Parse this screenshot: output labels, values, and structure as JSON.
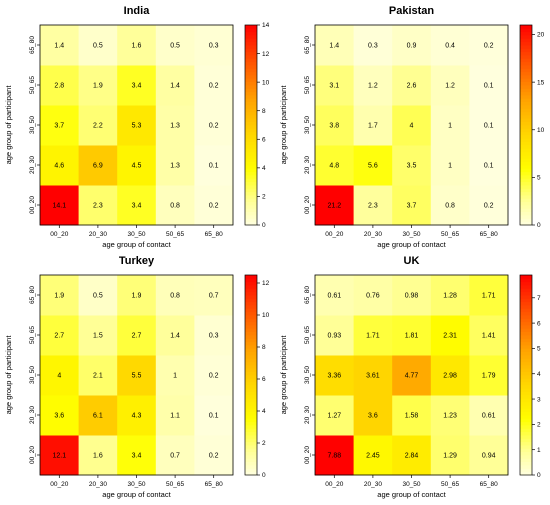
{
  "chart_data": [
    {
      "type": "heatmap",
      "title": "India",
      "xlabel": "age group of contact",
      "ylabel": "age group of participant",
      "x_categories": [
        "00_20",
        "20_30",
        "30_50",
        "50_65",
        "65_80"
      ],
      "y_categories": [
        "00_20",
        "20_30",
        "30_50",
        "50_65",
        "65_80"
      ],
      "values": [
        [
          14.1,
          2.3,
          3.4,
          0.8,
          0.2
        ],
        [
          4.6,
          6.9,
          4.5,
          1.3,
          0.1
        ],
        [
          3.7,
          2.2,
          5.3,
          1.3,
          0.2
        ],
        [
          2.8,
          1.9,
          3.4,
          1.4,
          0.2
        ],
        [
          1.4,
          0.5,
          1.6,
          0.5,
          0.3
        ]
      ],
      "labels": [
        [
          "14.1",
          "2.3",
          "3.4",
          "0.8",
          "0.2"
        ],
        [
          "4.6",
          "6.9",
          "4.5",
          "1.3",
          "0.1"
        ],
        [
          "3.7",
          "2.2",
          "5.3",
          "1.3",
          "0.2"
        ],
        [
          "2.8",
          "1.9",
          "3.4",
          "1.4",
          "0.2"
        ],
        [
          "1.4",
          "0.5",
          "1.6",
          "0.5",
          "0.3"
        ]
      ],
      "zlim": [
        0,
        14
      ],
      "colorbar_ticks": [
        "0",
        "2",
        "4",
        "6",
        "8",
        "10",
        "12",
        "14"
      ]
    },
    {
      "type": "heatmap",
      "title": "Pakistan",
      "xlabel": "age group of contact",
      "ylabel": "age group of participant",
      "x_categories": [
        "00_20",
        "20_30",
        "30_50",
        "50_65",
        "65_80"
      ],
      "y_categories": [
        "00_20",
        "20_30",
        "30_50",
        "50_65",
        "65_80"
      ],
      "values": [
        [
          21.2,
          2.3,
          3.7,
          0.8,
          0.2
        ],
        [
          4.8,
          5.6,
          3.5,
          1,
          0.1
        ],
        [
          3.8,
          1.7,
          4,
          1,
          0.1
        ],
        [
          3.1,
          1.2,
          2.6,
          1.2,
          0.1
        ],
        [
          1.4,
          0.3,
          0.9,
          0.4,
          0.2
        ]
      ],
      "labels": [
        [
          "21.2",
          "2.3",
          "3.7",
          "0.8",
          "0.2"
        ],
        [
          "4.8",
          "5.6",
          "3.5",
          "1",
          "0.1"
        ],
        [
          "3.8",
          "1.7",
          "4",
          "1",
          "0.1"
        ],
        [
          "3.1",
          "1.2",
          "2.6",
          "1.2",
          "0.1"
        ],
        [
          "1.4",
          "0.3",
          "0.9",
          "0.4",
          "0.2"
        ]
      ],
      "zlim": [
        0,
        21
      ],
      "colorbar_ticks": [
        "0",
        "5",
        "10",
        "15",
        "20"
      ]
    },
    {
      "type": "heatmap",
      "title": "Turkey",
      "xlabel": "age group of contact",
      "ylabel": "age group of participant",
      "x_categories": [
        "00_20",
        "20_30",
        "30_50",
        "50_65",
        "65_80"
      ],
      "y_categories": [
        "00_20",
        "20_30",
        "30_50",
        "50_65",
        "65_80"
      ],
      "values": [
        [
          12.1,
          1.6,
          3.4,
          0.7,
          0.2
        ],
        [
          3.6,
          6.1,
          4.3,
          1.1,
          0.1
        ],
        [
          4,
          2.1,
          5.5,
          1,
          0.2
        ],
        [
          2.7,
          1.5,
          2.7,
          1.4,
          0.3
        ],
        [
          1.9,
          0.5,
          1.9,
          0.8,
          0.7
        ]
      ],
      "labels": [
        [
          "12.1",
          "1.6",
          "3.4",
          "0.7",
          "0.2"
        ],
        [
          "3.6",
          "6.1",
          "4.3",
          "1.1",
          "0.1"
        ],
        [
          "4",
          "2.1",
          "5.5",
          "1",
          "0.2"
        ],
        [
          "2.7",
          "1.5",
          "2.7",
          "1.4",
          "0.3"
        ],
        [
          "1.9",
          "0.5",
          "1.9",
          "0.8",
          "0.7"
        ]
      ],
      "zlim": [
        0,
        12.5
      ],
      "colorbar_ticks": [
        "0",
        "2",
        "4",
        "6",
        "8",
        "10",
        "12"
      ]
    },
    {
      "type": "heatmap",
      "title": "UK",
      "xlabel": "age group of contact",
      "ylabel": "age group of participant",
      "x_categories": [
        "00_20",
        "20_30",
        "30_50",
        "50_65",
        "65_80"
      ],
      "y_categories": [
        "00_20",
        "20_30",
        "30_50",
        "50_65",
        "65_80"
      ],
      "values": [
        [
          7.88,
          2.45,
          2.84,
          1.29,
          0.94
        ],
        [
          1.27,
          3.6,
          1.58,
          1.23,
          0.61
        ],
        [
          3.36,
          3.61,
          4.77,
          2.98,
          1.79
        ],
        [
          0.93,
          1.71,
          1.81,
          2.31,
          1.41
        ],
        [
          0.61,
          0.76,
          0.98,
          1.28,
          1.71
        ]
      ],
      "labels": [
        [
          "7.88",
          "2.45",
          "2.84",
          "1.29",
          "0.94"
        ],
        [
          "1.27",
          "3.6",
          "1.58",
          "1.23",
          "0.61"
        ],
        [
          "3.36",
          "3.61",
          "4.77",
          "2.98",
          "1.79"
        ],
        [
          "0.93",
          "1.71",
          "1.81",
          "2.31",
          "1.41"
        ],
        [
          "0.61",
          "0.76",
          "0.98",
          "1.28",
          "1.71"
        ]
      ],
      "zlim": [
        0,
        7.9
      ],
      "colorbar_ticks": [
        "0",
        "1",
        "2",
        "3",
        "4",
        "5",
        "6",
        "7"
      ]
    }
  ]
}
